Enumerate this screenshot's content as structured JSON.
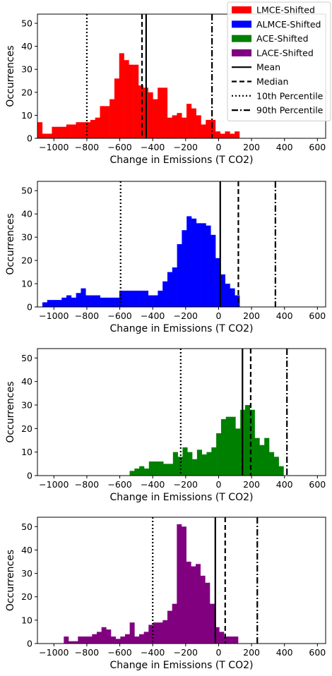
{
  "legend": {
    "placement": "upper-right",
    "items": [
      {
        "label": "LMCE-Shifted",
        "kind": "patch",
        "color": "#ff0000"
      },
      {
        "label": "ALMCE-Shifted",
        "kind": "patch",
        "color": "#0000ff"
      },
      {
        "label": "ACE-Shifted",
        "kind": "patch",
        "color": "#008000"
      },
      {
        "label": "LACE-Shifted",
        "kind": "patch",
        "color": "#800080"
      },
      {
        "label": "Mean",
        "kind": "line",
        "style": "solid"
      },
      {
        "label": "Median",
        "kind": "line",
        "style": "dashed"
      },
      {
        "label": "10th Percentile",
        "kind": "line",
        "style": "dotted"
      },
      {
        "label": "90th Percentile",
        "kind": "line",
        "style": "dashdot"
      }
    ]
  },
  "chart_data": [
    {
      "type": "bar",
      "name": "LMCE-Shifted",
      "color": "#ff0000",
      "xlabel": "Change in Emissions (T CO2)",
      "ylabel": "Occurrences",
      "xlim": [
        -1100,
        650
      ],
      "ylim": [
        0,
        54
      ],
      "xticks": [
        -1000,
        -800,
        -600,
        -400,
        -200,
        0,
        200,
        400,
        600
      ],
      "yticks": [
        0,
        10,
        20,
        30,
        40,
        50
      ],
      "bin_start": -1100,
      "bin_width": 29.2,
      "counts": [
        7,
        2,
        2,
        5,
        5,
        5,
        6,
        6,
        7,
        7,
        7,
        8,
        9,
        14,
        14,
        17,
        26,
        37,
        34,
        32,
        32,
        23,
        22,
        20,
        17,
        22,
        22,
        9,
        10,
        11,
        9,
        15,
        13,
        10,
        6,
        8,
        8,
        3,
        2,
        3,
        2,
        3
      ],
      "lines": {
        "mean": -440,
        "median": -465,
        "p10": -800,
        "p90": -40
      }
    },
    {
      "type": "bar",
      "name": "ALMCE-Shifted",
      "color": "#0000ff",
      "xlabel": "Change in Emissions (T CO2)",
      "ylabel": "Occurrences",
      "xlim": [
        -1100,
        650
      ],
      "ylim": [
        0,
        54
      ],
      "xticks": [
        -1000,
        -800,
        -600,
        -400,
        -200,
        0,
        200,
        400,
        600
      ],
      "yticks": [
        0,
        10,
        20,
        30,
        40,
        50
      ],
      "bin_start": -1070,
      "bin_width": 29.2,
      "counts": [
        2,
        3,
        3,
        3,
        4,
        5,
        4,
        6,
        8,
        5,
        5,
        5,
        4,
        4,
        4,
        4,
        7,
        7,
        7,
        7,
        7,
        7,
        5,
        5,
        7,
        11,
        15,
        17,
        27,
        33,
        39,
        38,
        36,
        36,
        35,
        31,
        21,
        14,
        10,
        8,
        5
      ],
      "lines": {
        "mean": 10,
        "median": 120,
        "p10": -595,
        "p90": 345
      }
    },
    {
      "type": "bar",
      "name": "ACE-Shifted",
      "color": "#008000",
      "xlabel": "Change in Emissions (T CO2)",
      "ylabel": "Occurrences",
      "xlim": [
        -1100,
        650
      ],
      "ylim": [
        0,
        54
      ],
      "xticks": [
        -1000,
        -800,
        -600,
        -400,
        -200,
        0,
        200,
        400,
        600
      ],
      "yticks": [
        0,
        10,
        20,
        30,
        40,
        50
      ],
      "bin_start": -540,
      "bin_width": 29.2,
      "counts": [
        2,
        3,
        4,
        3,
        6,
        6,
        6,
        5,
        5,
        10,
        8,
        12,
        10,
        7,
        11,
        9,
        10,
        12,
        18,
        24,
        25,
        25,
        20,
        28,
        30,
        28,
        16,
        13,
        16,
        10,
        8,
        4
      ],
      "lines": {
        "mean": 145,
        "median": 195,
        "p10": -230,
        "p90": 415
      }
    },
    {
      "type": "bar",
      "name": "LACE-Shifted",
      "color": "#800080",
      "xlabel": "Change in Emissions (T CO2)",
      "ylabel": "Occurrences",
      "xlim": [
        -1100,
        650
      ],
      "ylim": [
        0,
        54
      ],
      "xticks": [
        -1000,
        -800,
        -600,
        -400,
        -200,
        0,
        200,
        400,
        600
      ],
      "yticks": [
        0,
        10,
        20,
        30,
        40,
        50
      ],
      "bin_start": -940,
      "bin_width": 28.6,
      "counts": [
        3,
        1,
        1,
        3,
        3,
        3,
        4,
        5,
        7,
        6,
        3,
        2,
        3,
        4,
        9,
        3,
        4,
        5,
        8,
        9,
        9,
        10,
        14,
        17,
        51,
        50,
        35,
        33,
        34,
        29,
        26,
        17,
        7,
        5,
        3,
        3,
        3
      ],
      "lines": {
        "mean": -20,
        "median": 40,
        "p10": -400,
        "p90": 235
      }
    }
  ]
}
